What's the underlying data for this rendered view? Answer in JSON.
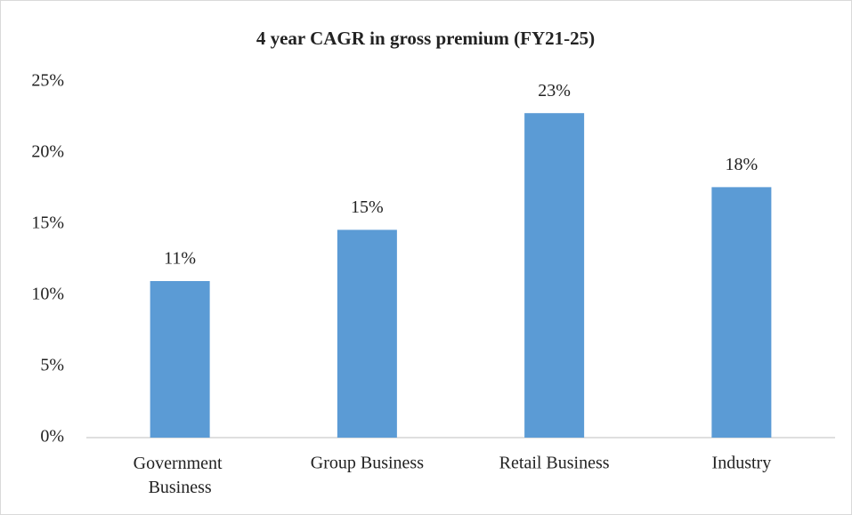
{
  "chart_data": {
    "type": "bar",
    "title": "4 year CAGR in gross premium (FY21-25)",
    "categories": [
      "Government Business",
      "Group Business",
      "Retail Business",
      "Industry"
    ],
    "values": [
      11,
      14.6,
      22.8,
      17.6
    ],
    "value_labels": [
      "11%",
      "15%",
      "23%",
      "18%"
    ],
    "color": "#5b9bd5",
    "ylim": [
      0,
      25
    ],
    "yticks": [
      {
        "value": 0,
        "label": "0%"
      },
      {
        "value": 5,
        "label": "5%"
      },
      {
        "value": 10,
        "label": "10%"
      },
      {
        "value": 15,
        "label": "15%"
      },
      {
        "value": 20,
        "label": "20%"
      },
      {
        "value": 25,
        "label": "25%"
      }
    ],
    "grid": false
  }
}
